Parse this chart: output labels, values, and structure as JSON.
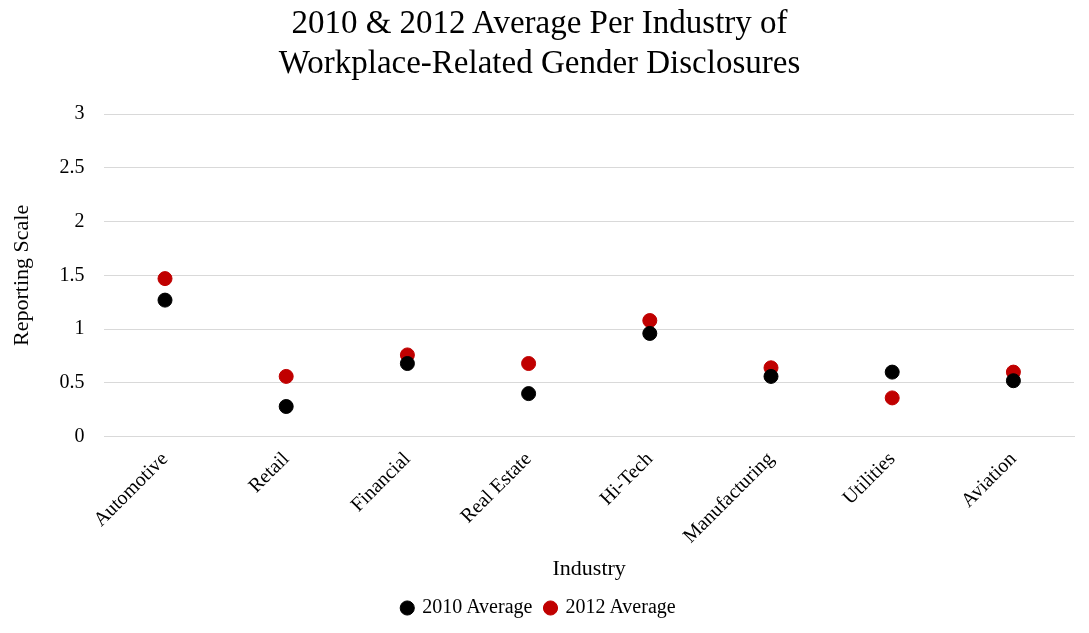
{
  "chart_data": {
    "type": "scatter",
    "title": [
      "2010 & 2012 Average Per Industry of",
      "Workplace-Related Gender Disclosures"
    ],
    "xlabel": "Industry",
    "ylabel": "Reporting Scale",
    "categories": [
      "Automotive",
      "Retail",
      "Financial",
      "Real Estate",
      "Hi-Tech",
      "Manufacturing",
      "Utilities",
      "Aviation"
    ],
    "series": [
      {
        "name": "2010 Average",
        "color": "#000000",
        "values": [
          1.27,
          0.28,
          0.68,
          0.4,
          0.96,
          0.56,
          0.6,
          0.52
        ]
      },
      {
        "name": "2012 Average",
        "color": "#c00000",
        "values": [
          1.47,
          0.56,
          0.76,
          0.68,
          1.08,
          0.64,
          0.36,
          0.6
        ]
      }
    ],
    "ylim": [
      0,
      3
    ],
    "yticks": [
      0,
      0.5,
      1,
      1.5,
      2,
      2.5,
      3
    ],
    "grid": "y",
    "legend": "bottom",
    "marker": "circle"
  }
}
